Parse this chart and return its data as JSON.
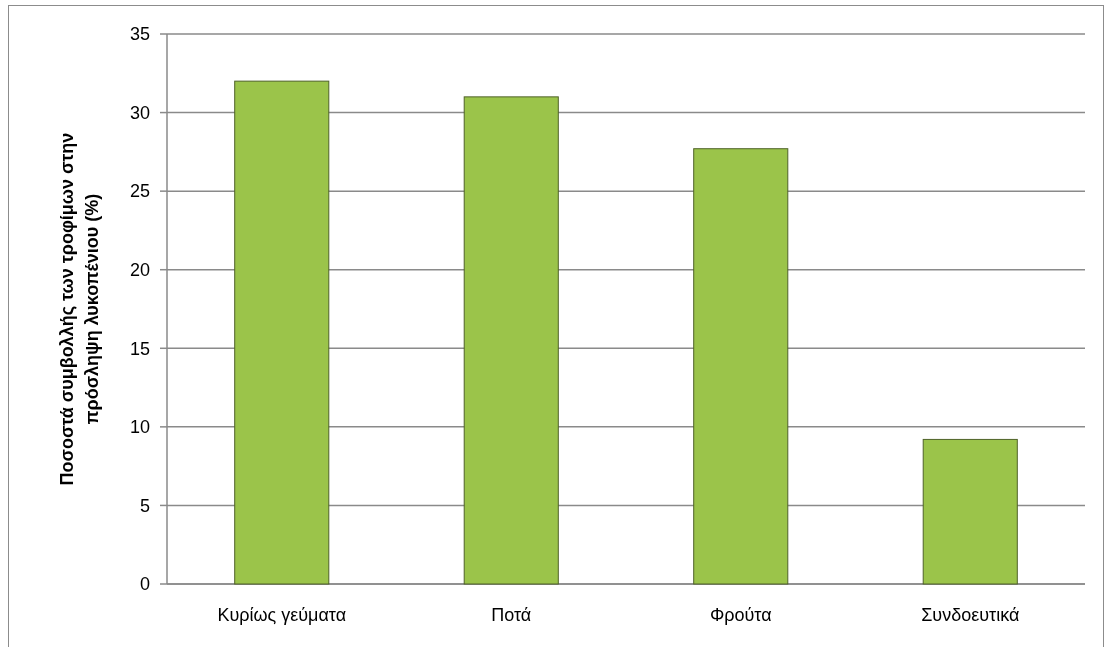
{
  "chart_data": {
    "type": "bar",
    "categories": [
      "Κυρίως γεύματα",
      "Ποτά",
      "Φρούτα",
      "Συνδοευτικά"
    ],
    "values": [
      32.0,
      31.0,
      27.7,
      9.2
    ],
    "color": "#9bc44a",
    "ylabel": "Ποσοστά συμβολλής των τροφίμων στην πρόσληψη λυκοπένιου (%)",
    "ylim": [
      0,
      35
    ],
    "yticks": [
      0,
      5,
      10,
      15,
      20,
      25,
      30,
      35
    ],
    "grid": "y"
  }
}
